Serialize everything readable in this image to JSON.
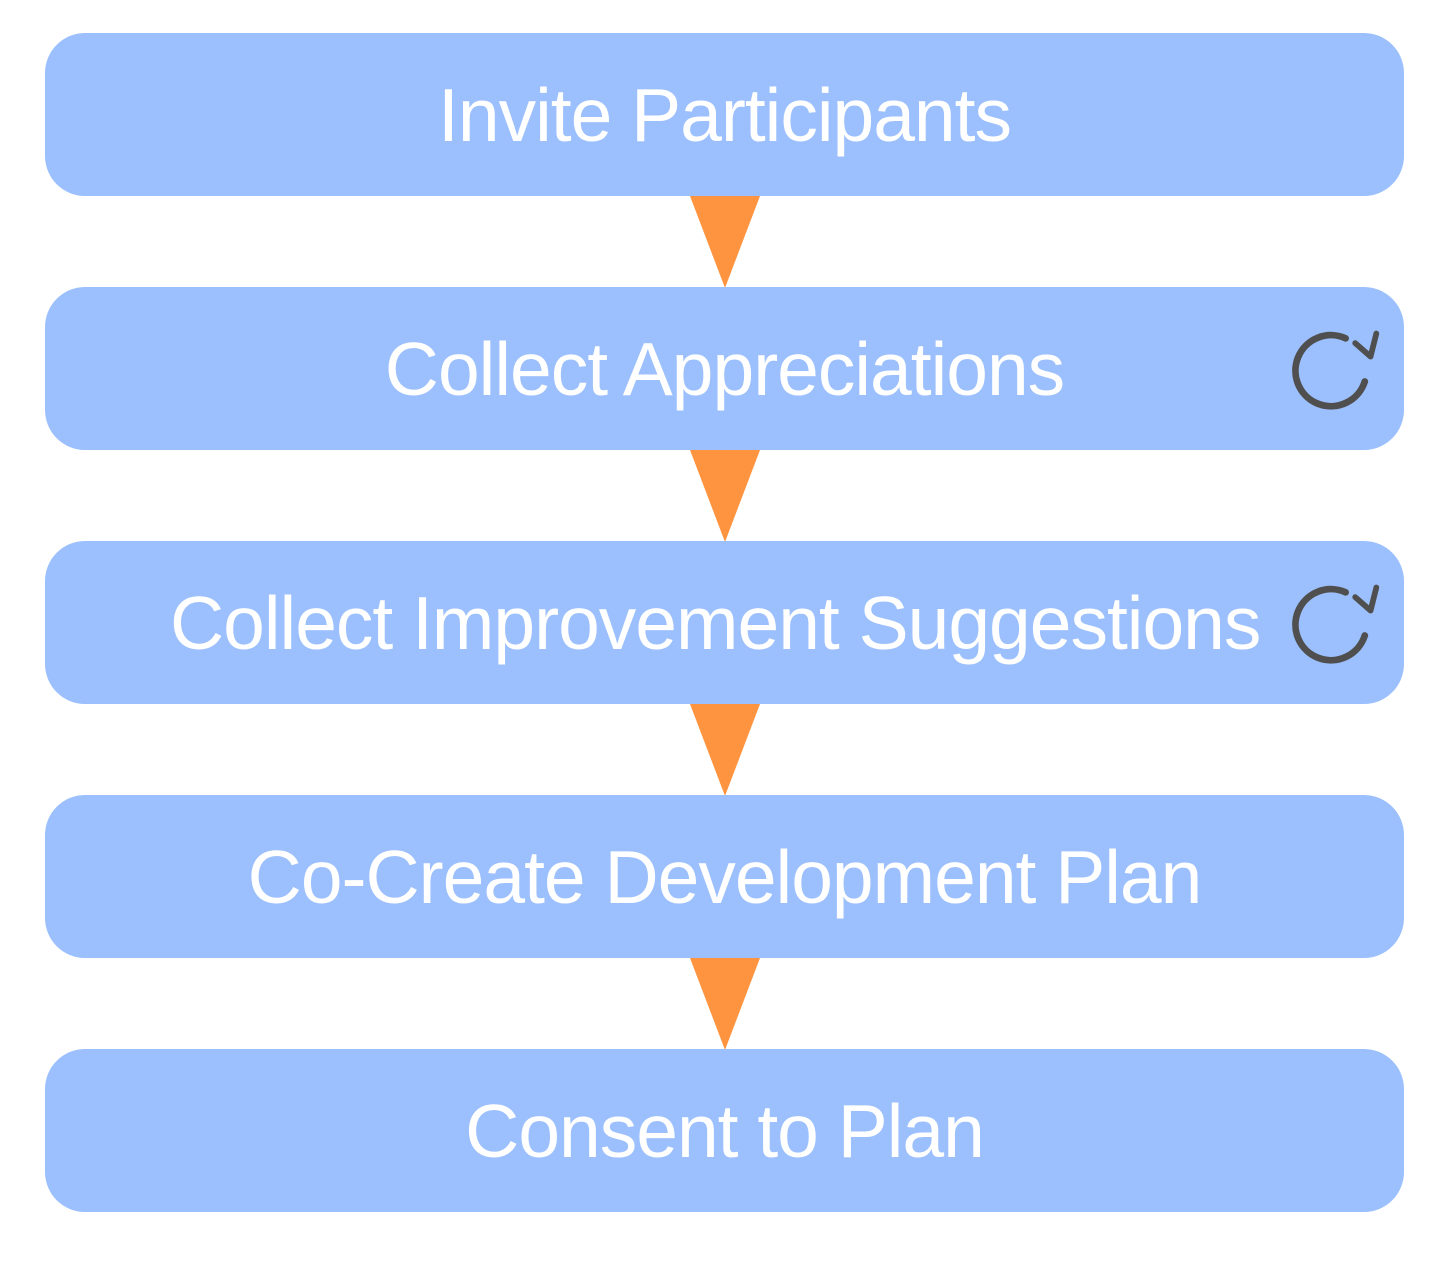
{
  "steps": [
    {
      "label": "Invite Participants",
      "repeats": false
    },
    {
      "label": "Collect Appreciations",
      "repeats": true,
      "icon": "repeat-icon"
    },
    {
      "label": "Collect Improvement Suggestions",
      "repeats": true,
      "icon": "repeat-icon"
    },
    {
      "label": "Co-Create Development Plan",
      "repeats": false
    },
    {
      "label": "Consent to Plan",
      "repeats": false
    }
  ],
  "colors": {
    "step_fill": "#9cc0fd",
    "step_text": "#ffffff",
    "arrow": "#ff9440",
    "icon": "#4f4f4f"
  }
}
